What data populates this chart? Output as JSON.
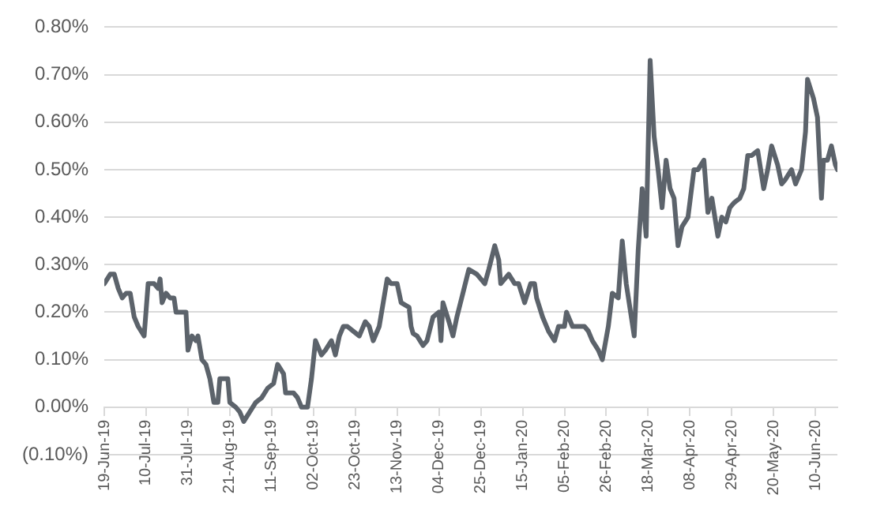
{
  "chart_data": {
    "type": "line",
    "x": [
      "2019-06-19",
      "2019-06-22",
      "2019-06-24",
      "2019-06-26",
      "2019-06-28",
      "2019-06-30",
      "2019-07-02",
      "2019-07-04",
      "2019-07-06",
      "2019-07-09",
      "2019-07-11",
      "2019-07-14",
      "2019-07-16",
      "2019-07-17",
      "2019-07-18",
      "2019-07-20",
      "2019-07-22",
      "2019-07-24",
      "2019-07-25",
      "2019-07-30",
      "2019-07-31",
      "2019-08-02",
      "2019-08-04",
      "2019-08-05",
      "2019-08-07",
      "2019-08-09",
      "2019-08-11",
      "2019-08-13",
      "2019-08-15",
      "2019-08-16",
      "2019-08-20",
      "2019-08-21",
      "2019-08-24",
      "2019-08-26",
      "2019-08-28",
      "2019-08-31",
      "2019-09-03",
      "2019-09-06",
      "2019-09-09",
      "2019-09-12",
      "2019-09-14",
      "2019-09-17",
      "2019-09-18",
      "2019-09-22",
      "2019-09-24",
      "2019-09-26",
      "2019-09-29",
      "2019-10-01",
      "2019-10-03",
      "2019-10-06",
      "2019-10-08",
      "2019-10-11",
      "2019-10-13",
      "2019-10-15",
      "2019-10-17",
      "2019-10-19",
      "2019-10-22",
      "2019-10-25",
      "2019-10-28",
      "2019-10-30",
      "2019-11-01",
      "2019-11-04",
      "2019-11-06",
      "2019-11-08",
      "2019-11-10",
      "2019-11-13",
      "2019-11-15",
      "2019-11-19",
      "2019-11-20",
      "2019-11-21",
      "2019-11-23",
      "2019-11-26",
      "2019-11-28",
      "2019-12-01",
      "2019-12-04",
      "2019-12-05",
      "2019-12-06",
      "2019-12-09",
      "2019-12-11",
      "2019-12-13",
      "2019-12-16",
      "2019-12-19",
      "2019-12-23",
      "2019-12-27",
      "2019-12-29",
      "2020-01-01",
      "2020-01-03",
      "2020-01-04",
      "2020-01-08",
      "2020-01-11",
      "2020-01-13",
      "2020-01-16",
      "2020-01-19",
      "2020-01-21",
      "2020-01-22",
      "2020-01-25",
      "2020-01-28",
      "2020-01-31",
      "2020-02-02",
      "2020-02-05",
      "2020-02-06",
      "2020-02-09",
      "2020-02-12",
      "2020-02-15",
      "2020-02-17",
      "2020-02-19",
      "2020-02-22",
      "2020-02-24",
      "2020-02-27",
      "2020-02-29",
      "2020-03-03",
      "2020-03-05",
      "2020-03-07",
      "2020-03-11",
      "2020-03-13",
      "2020-03-15",
      "2020-03-17",
      "2020-03-19",
      "2020-03-21",
      "2020-03-23",
      "2020-03-25",
      "2020-03-27",
      "2020-03-29",
      "2020-03-31",
      "2020-04-02",
      "2020-04-04",
      "2020-04-07",
      "2020-04-10",
      "2020-04-12",
      "2020-04-15",
      "2020-04-17",
      "2020-04-19",
      "2020-04-22",
      "2020-04-24",
      "2020-04-26",
      "2020-04-28",
      "2020-04-30",
      "2020-05-03",
      "2020-05-05",
      "2020-05-07",
      "2020-05-09",
      "2020-05-12",
      "2020-05-15",
      "2020-05-17",
      "2020-05-19",
      "2020-05-22",
      "2020-05-24",
      "2020-05-26",
      "2020-05-29",
      "2020-05-31",
      "2020-06-03",
      "2020-06-05",
      "2020-06-06",
      "2020-06-09",
      "2020-06-11",
      "2020-06-13",
      "2020-06-14",
      "2020-06-16",
      "2020-06-18",
      "2020-06-20",
      "2020-06-21"
    ],
    "series": [
      {
        "color": "#5c636b",
        "values": [
          0.26,
          0.28,
          0.28,
          0.25,
          0.23,
          0.24,
          0.24,
          0.19,
          0.17,
          0.15,
          0.26,
          0.26,
          0.25,
          0.27,
          0.22,
          0.24,
          0.23,
          0.23,
          0.2,
          0.2,
          0.12,
          0.15,
          0.14,
          0.15,
          0.1,
          0.09,
          0.06,
          0.01,
          0.01,
          0.06,
          0.06,
          0.01,
          0.0,
          -0.01,
          -0.03,
          -0.01,
          0.01,
          0.02,
          0.04,
          0.05,
          0.09,
          0.07,
          0.03,
          0.03,
          0.02,
          0.0,
          0.0,
          0.06,
          0.14,
          0.11,
          0.12,
          0.14,
          0.11,
          0.15,
          0.17,
          0.17,
          0.16,
          0.15,
          0.18,
          0.17,
          0.14,
          0.17,
          0.22,
          0.27,
          0.26,
          0.26,
          0.22,
          0.21,
          0.17,
          0.155,
          0.15,
          0.13,
          0.14,
          0.19,
          0.2,
          0.14,
          0.22,
          0.18,
          0.15,
          0.19,
          0.24,
          0.29,
          0.28,
          0.26,
          0.29,
          0.34,
          0.31,
          0.26,
          0.28,
          0.26,
          0.26,
          0.22,
          0.26,
          0.26,
          0.23,
          0.19,
          0.16,
          0.14,
          0.17,
          0.17,
          0.2,
          0.17,
          0.17,
          0.17,
          0.16,
          0.14,
          0.12,
          0.1,
          0.17,
          0.24,
          0.23,
          0.35,
          0.26,
          0.15,
          0.33,
          0.46,
          0.36,
          0.73,
          0.57,
          0.5,
          0.42,
          0.52,
          0.46,
          0.44,
          0.34,
          0.38,
          0.4,
          0.5,
          0.5,
          0.52,
          0.41,
          0.44,
          0.36,
          0.4,
          0.39,
          0.42,
          0.43,
          0.44,
          0.46,
          0.53,
          0.53,
          0.54,
          0.46,
          0.5,
          0.55,
          0.51,
          0.47,
          0.48,
          0.5,
          0.47,
          0.5,
          0.58,
          0.69,
          0.65,
          0.61,
          0.44,
          0.52,
          0.52,
          0.55,
          0.51,
          0.5
        ]
      }
    ],
    "xlim": [
      "2019-06-19",
      "2020-06-21"
    ],
    "xticks": [
      {
        "value": "2019-06-19",
        "label": "19-Jun-19"
      },
      {
        "value": "2019-07-10",
        "label": "10-Jul-19"
      },
      {
        "value": "2019-07-31",
        "label": "31-Jul-19"
      },
      {
        "value": "2019-08-21",
        "label": "21-Aug-19"
      },
      {
        "value": "2019-09-11",
        "label": "11-Sep-19"
      },
      {
        "value": "2019-10-02",
        "label": "02-Oct-19"
      },
      {
        "value": "2019-10-23",
        "label": "23-Oct-19"
      },
      {
        "value": "2019-11-13",
        "label": "13-Nov-19"
      },
      {
        "value": "2019-12-04",
        "label": "04-Dec-19"
      },
      {
        "value": "2019-12-25",
        "label": "25-Dec-19"
      },
      {
        "value": "2020-01-15",
        "label": "15-Jan-20"
      },
      {
        "value": "2020-02-05",
        "label": "05-Feb-20"
      },
      {
        "value": "2020-02-26",
        "label": "26-Feb-20"
      },
      {
        "value": "2020-03-18",
        "label": "18-Mar-20"
      },
      {
        "value": "2020-04-08",
        "label": "08-Apr-20"
      },
      {
        "value": "2020-04-29",
        "label": "29-Apr-20"
      },
      {
        "value": "2020-05-20",
        "label": "20-May-20"
      },
      {
        "value": "2020-06-10",
        "label": "10-Jun-20"
      }
    ],
    "ylim": [
      -0.1,
      0.8
    ],
    "yticks": [
      {
        "value": -0.1,
        "label": "(0.10%)"
      },
      {
        "value": 0,
        "label": "0.00%"
      },
      {
        "value": 0.1,
        "label": "0.10%"
      },
      {
        "value": 0.2,
        "label": "0.20%"
      },
      {
        "value": 0.3,
        "label": "0.30%"
      },
      {
        "value": 0.4,
        "label": "0.40%"
      },
      {
        "value": 0.5,
        "label": "0.50%"
      },
      {
        "value": 0.6,
        "label": "0.60%"
      },
      {
        "value": 0.7,
        "label": "0.70%"
      },
      {
        "value": 0.8,
        "label": "0.80%"
      }
    ],
    "grid": "y",
    "legend": false,
    "marker": "none",
    "line_style": "solid"
  }
}
